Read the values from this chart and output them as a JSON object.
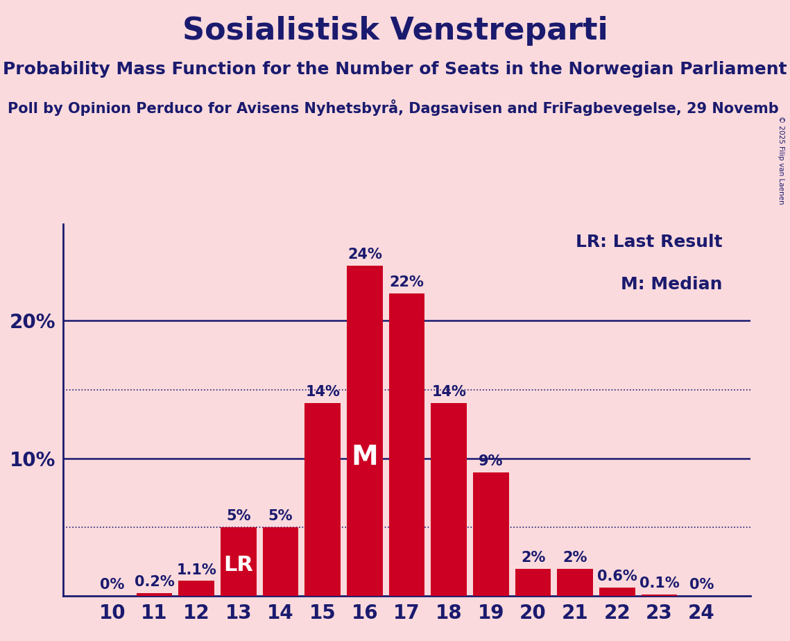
{
  "title": "Sosialistisk Venstreparti",
  "subtitle": "Probability Mass Function for the Number of Seats in the Norwegian Parliament",
  "source": "Poll by Opinion Perduco for Avisens Nyhetsbyrå, Dagsavisen and FriFagbevegelse, 29 Novemb",
  "copyright": "© 2025 Filip van Laenen",
  "categories": [
    10,
    11,
    12,
    13,
    14,
    15,
    16,
    17,
    18,
    19,
    20,
    21,
    22,
    23,
    24
  ],
  "values": [
    0.0,
    0.2,
    1.1,
    5.0,
    5.0,
    14.0,
    24.0,
    22.0,
    14.0,
    9.0,
    2.0,
    2.0,
    0.6,
    0.1,
    0.0
  ],
  "labels": [
    "0%",
    "0.2%",
    "1.1%",
    "5%",
    "5%",
    "14%",
    "24%",
    "22%",
    "14%",
    "9%",
    "2%",
    "2%",
    "0.6%",
    "0.1%",
    "0%"
  ],
  "bar_color": "#CC0022",
  "background_color": "#FADADD",
  "title_color": "#1a1a6e",
  "text_color": "#1a1a6e",
  "median_bar_idx": 6,
  "lr_bar_idx": 3,
  "legend_lr": "LR: Last Result",
  "legend_m": "M: Median",
  "ylim": [
    0,
    27
  ],
  "solid_line_vals": [
    10,
    20
  ],
  "dotted_line_vals": [
    5,
    15
  ],
  "title_fontsize": 32,
  "subtitle_fontsize": 18,
  "source_fontsize": 15,
  "bar_label_fontsize": 15,
  "axis_tick_fontsize": 20,
  "legend_fontsize": 18,
  "ytick_vals": [
    10,
    20
  ],
  "ytick_labels": [
    "10%",
    "20%"
  ]
}
